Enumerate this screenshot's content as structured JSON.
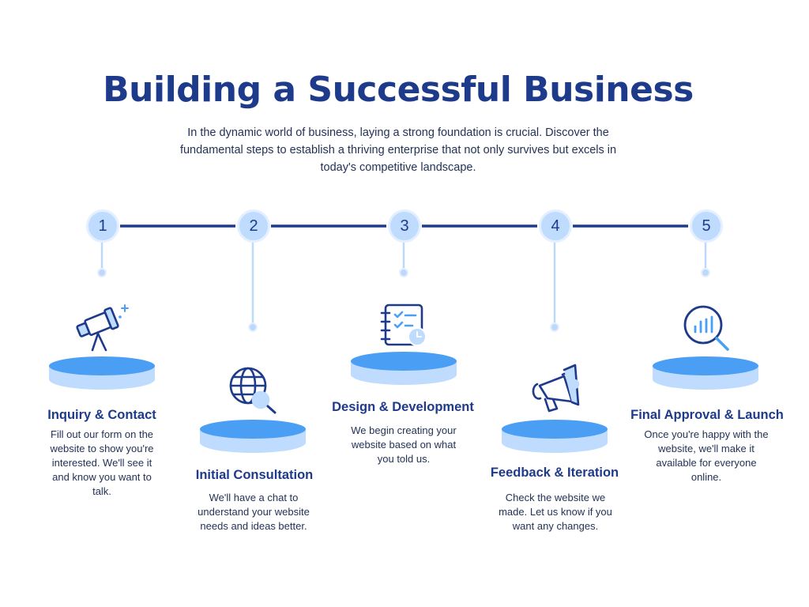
{
  "title": "Building a Successful Business",
  "intro": "In the dynamic world of business, laying a strong foundation is crucial. Discover the fundamental steps to establish a thriving enterprise that not only survives but excels in today's competitive landscape.",
  "colors": {
    "primary": "#1e3a8a",
    "accent_blue": "#4a9ff5",
    "light_blue": "#bfdbfe",
    "connector": "#bcd9fb"
  },
  "steps": [
    {
      "number": "1",
      "title": "Inquiry & Contact",
      "description": "Fill out our form on the website to show you're interested. We'll see it and know you want to talk.",
      "icon": "telescope-icon"
    },
    {
      "number": "2",
      "title": "Initial Consultation",
      "description": "We'll have a chat to understand your website needs and ideas better.",
      "icon": "globe-search-icon"
    },
    {
      "number": "3",
      "title": "Design & Development",
      "description": "We begin creating your website based on what you told us.",
      "icon": "notebook-clock-icon"
    },
    {
      "number": "4",
      "title": "Feedback & Iteration",
      "description": "Check the website we made. Let us know if you want any changes.",
      "icon": "megaphone-icon"
    },
    {
      "number": "5",
      "title": "Final Approval & Launch",
      "description": "Once you're happy with the website, we'll make it available for everyone online.",
      "icon": "analytics-search-icon"
    }
  ]
}
